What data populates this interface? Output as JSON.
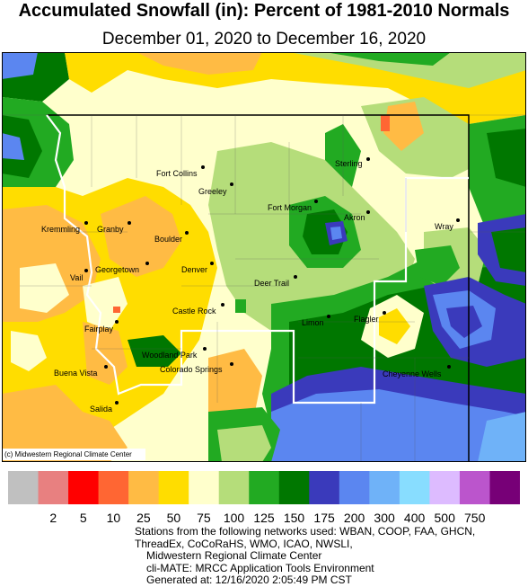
{
  "title": "Accumulated Snowfall (in): Percent of 1981-2010 Normals",
  "subtitle": "December 01, 2020 to December 16, 2020",
  "copyright": "(c) Midwestern Regional Climate Center",
  "legend": {
    "colors": [
      "#c0c0c0",
      "#e88080",
      "#ff0000",
      "#ff6633",
      "#ffbb44",
      "#ffdd00",
      "#ffffcc",
      "#b5dd7a",
      "#22aa22",
      "#007700",
      "#3a3abb",
      "#5b86f0",
      "#6fb2f8",
      "#88ddff",
      "#ddbbff",
      "#bb55cc",
      "#770077"
    ],
    "labels": [
      "2",
      "5",
      "10",
      "25",
      "50",
      "75",
      "100",
      "125",
      "150",
      "175",
      "200",
      "300",
      "400",
      "500",
      "750"
    ]
  },
  "cities": [
    {
      "name": "Fort Collins",
      "dot_side": "right"
    },
    {
      "name": "Greeley",
      "dot_side": "right"
    },
    {
      "name": "Sterling",
      "dot_side": "right"
    },
    {
      "name": "Fort Morgan",
      "dot_side": "right"
    },
    {
      "name": "Akron",
      "dot_side": "right"
    },
    {
      "name": "Wray",
      "dot_side": "right"
    },
    {
      "name": "Kremmling",
      "dot_side": "right"
    },
    {
      "name": "Granby",
      "dot_side": "right"
    },
    {
      "name": "Boulder",
      "dot_side": "right"
    },
    {
      "name": "Georgetown",
      "dot_side": "right"
    },
    {
      "name": "Denver",
      "dot_side": "right"
    },
    {
      "name": "Vail",
      "dot_side": "right"
    },
    {
      "name": "Deer Trail",
      "dot_side": "right"
    },
    {
      "name": "Castle Rock",
      "dot_side": "right"
    },
    {
      "name": "Limon",
      "dot_side": "right"
    },
    {
      "name": "Flagler",
      "dot_side": "right"
    },
    {
      "name": "Fairplay",
      "dot_side": "right"
    },
    {
      "name": "Woodland Park",
      "dot_side": "right"
    },
    {
      "name": "Colorado Springs",
      "dot_side": "right"
    },
    {
      "name": "Cheyenne Wells",
      "dot_side": "right"
    },
    {
      "name": "Buena Vista",
      "dot_side": "right"
    },
    {
      "name": "Salida",
      "dot_side": "right"
    }
  ],
  "credits": [
    "Stations from the following networks used: WBAN, COOP, FAA, GHCN,",
    "ThreadEx, CoCoRaHS, WMO, ICAO, NWSLI,",
    "Midwestern Regional Climate Center",
    "cli-MATE: MRCC Application Tools Environment",
    "Generated at: 12/16/2020 2:05:49 PM CST"
  ]
}
